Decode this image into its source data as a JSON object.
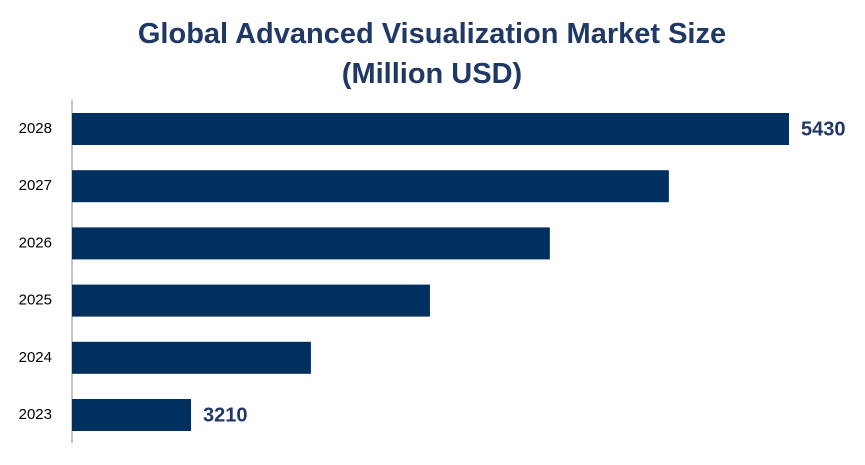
{
  "chart_data": {
    "type": "hbar",
    "title": "Global Advanced Visualization Market Size (Million USD)",
    "categories": [
      "2023",
      "2024",
      "2025",
      "2026",
      "2027",
      "2028"
    ],
    "values": [
      3210,
      3655,
      4097,
      4542,
      4984,
      5430
    ],
    "color": "#003060",
    "xlim": [
      2768,
      5430
    ],
    "data_labels": "first-last"
  }
}
